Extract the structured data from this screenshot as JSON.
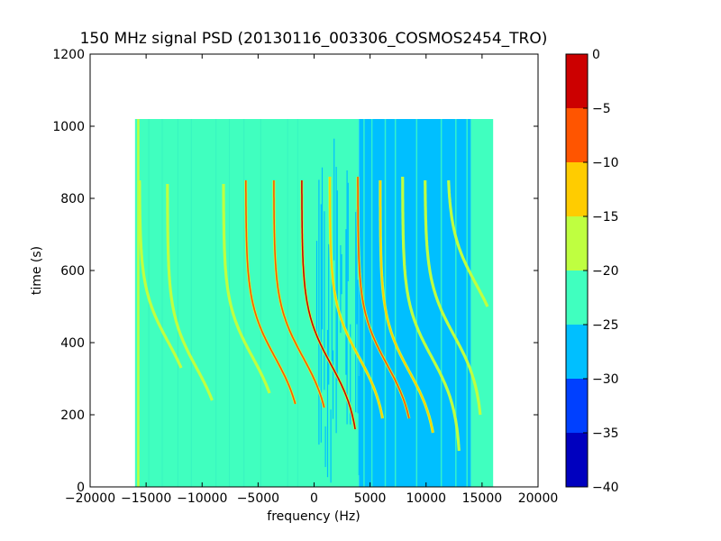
{
  "chart_data": {
    "type": "heatmap",
    "title": "150 MHz signal PSD (20130116_003306_COSMOS2454_TRO)",
    "xlabel": "frequency (Hz)",
    "ylabel": "time (s)",
    "xlim": [
      -20000,
      20000
    ],
    "ylim": [
      0,
      1200
    ],
    "xticks": [
      -20000,
      -15000,
      -10000,
      -5000,
      0,
      5000,
      10000,
      15000,
      20000
    ],
    "xtick_labels": [
      "−20000",
      "−15000",
      "−10000",
      "−5000",
      "0",
      "5000",
      "10000",
      "15000",
      "20000"
    ],
    "yticks": [
      0,
      200,
      400,
      600,
      800,
      1000,
      1200
    ],
    "ytick_labels": [
      "0",
      "200",
      "400",
      "600",
      "800",
      "1000",
      "1200"
    ],
    "data_extent": {
      "x": [
        -16000,
        16000
      ],
      "y": [
        0,
        1020
      ]
    },
    "colorbar": {
      "levels": [
        -40,
        -35,
        -30,
        -25,
        -20,
        -15,
        -10,
        -5,
        0
      ],
      "tick_labels": [
        "−40",
        "−35",
        "−30",
        "−25",
        "−20",
        "−15",
        "−10",
        "−5",
        "0"
      ],
      "colors": [
        "#0000bf",
        "#0040ff",
        "#00bfff",
        "#40ffbf",
        "#bfff40",
        "#ffcc00",
        "#ff5500",
        "#cc0000"
      ]
    },
    "background_regions": [
      {
        "x": [
          -16000,
          0
        ],
        "color": "#40ffbf",
        "level": "-25 to -20"
      },
      {
        "x": [
          0,
          4000
        ],
        "color": "mixed",
        "level": "-30 to -20"
      },
      {
        "x": [
          4000,
          14000
        ],
        "color": "#00bfff",
        "level": "-30 to -25"
      },
      {
        "x": [
          14000,
          16000
        ],
        "color": "#40ffbf",
        "level": "-25 to -20"
      }
    ],
    "vertical_lines": [
      {
        "x": -15700,
        "y": [
          0,
          1020
        ],
        "color": "#bfff40"
      }
    ],
    "tracks": [
      {
        "center_x": -17000,
        "t_cross": 470,
        "y_range": [
          440,
          560
        ],
        "color": "#bfff40"
      },
      {
        "center_x": -13000,
        "t_cross": 400,
        "y_range": [
          330,
          850
        ],
        "color": "#bfff40"
      },
      {
        "center_x": -10500,
        "t_cross": 330,
        "y_range": [
          240,
          840
        ],
        "color": "#bfff40"
      },
      {
        "center_x": -5500,
        "t_cross": 360,
        "y_range": [
          260,
          840
        ],
        "color": "#bfff40"
      },
      {
        "center_x": -3500,
        "t_cross": 360,
        "y_range": [
          230,
          850
        ],
        "color": "#ff5500"
      },
      {
        "center_x": -1000,
        "t_cross": 360,
        "y_range": [
          220,
          850
        ],
        "color": "#ff5500"
      },
      {
        "center_x": 1500,
        "t_cross": 340,
        "y_range": [
          160,
          850
        ],
        "color": "#cc0000"
      },
      {
        "center_x": 4000,
        "t_cross": 360,
        "y_range": [
          190,
          860
        ],
        "color": "#ffcc00"
      },
      {
        "center_x": 6500,
        "t_cross": 340,
        "y_range": [
          190,
          860
        ],
        "color": "#ff5500"
      },
      {
        "center_x": 8500,
        "t_cross": 320,
        "y_range": [
          150,
          850
        ],
        "color": "#ffcc00"
      },
      {
        "center_x": 10500,
        "t_cross": 360,
        "y_range": [
          100,
          860
        ],
        "color": "#bfff40"
      },
      {
        "center_x": 12500,
        "t_cross": 420,
        "y_range": [
          200,
          850
        ],
        "color": "#bfff40"
      },
      {
        "center_x": 14500,
        "t_cross": 560,
        "y_range": [
          500,
          850
        ],
        "color": "#bfff40"
      }
    ],
    "grid": false,
    "legend": "colorbar-right"
  }
}
